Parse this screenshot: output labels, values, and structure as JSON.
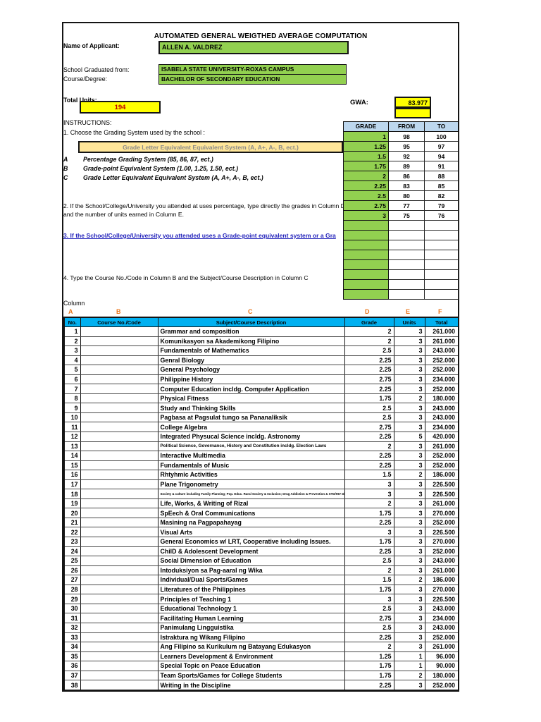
{
  "title": "AUTOMATED GENERAL WEIGTHED AVERAGE COMPUTATION",
  "applicant": {
    "name_label": "Name of Applicant:",
    "name": "ALLEN A. VALDREZ",
    "school_label": "School Graduated from:",
    "school": "ISABELA STATE UNIVERSITY-ROXAS CAMPUS",
    "course_label": "Course/Degree:",
    "course": "BACHELOR OF SECONDARY EDUCATION",
    "total_units_label": "Total Units:",
    "total_units": "194",
    "gwa_label": "GWA:",
    "gwa": "83.977"
  },
  "grade_scale": {
    "headers": [
      "GRADE",
      "FROM",
      "TO"
    ],
    "rows": [
      {
        "grade": "1",
        "from": "98",
        "to": "100"
      },
      {
        "grade": "1.25",
        "from": "95",
        "to": "97"
      },
      {
        "grade": "1.5",
        "from": "92",
        "to": "94"
      },
      {
        "grade": "1.75",
        "from": "89",
        "to": "91"
      },
      {
        "grade": "2",
        "from": "86",
        "to": "88"
      },
      {
        "grade": "2.25",
        "from": "83",
        "to": "85"
      },
      {
        "grade": "2.5",
        "from": "80",
        "to": "82"
      },
      {
        "grade": "2.75",
        "from": "77",
        "to": "79"
      },
      {
        "grade": "3",
        "from": "75",
        "to": "76"
      }
    ],
    "empty_row_count": 8
  },
  "instructions": {
    "heading": "INSTRUCTIONS:",
    "step1": "1. Choose the Grading System used by the school :",
    "dropdown_value": "Grade Letter Equivalent Equivalent System (A, A+, A-, B, ect.)",
    "options": [
      {
        "letter": "A",
        "text": "Percentage Grading System (85, 86, 87, ect.)"
      },
      {
        "letter": "B",
        "text": "Grade-point Equivalent System (1.00, 1.25, 1.50, ect.)"
      },
      {
        "letter": "C",
        "text": "Grade Letter Equivalent Equivalent System (A, A+, A-, B, ect.)"
      }
    ],
    "step2": "2. If the School/College/University you attended at uses percentage, type directly the grades in Column D and the number of units earned in Column E.",
    "step3": "3. If the School/College/University you attended uses a Grade-point equivalent system or a Gra",
    "step4": "4. Type the Course No./Code in Column B and the Subject/Course Description in Column C",
    "column_label": "Column"
  },
  "column_letters": [
    "A",
    "B",
    "C",
    "D",
    "E",
    "F"
  ],
  "main_table": {
    "headers": [
      "No.",
      "Course No./Code",
      "Subject/Course Description",
      "Grade",
      "Units",
      "Total"
    ],
    "rows": [
      {
        "no": "1",
        "code": "",
        "desc": "Grammar and composition",
        "grade": "2",
        "units": "3",
        "total": "261.000",
        "size": ""
      },
      {
        "no": "2",
        "code": "",
        "desc": "Komunikasyon sa Akademikong Filipino",
        "grade": "2",
        "units": "3",
        "total": "261.000",
        "size": ""
      },
      {
        "no": "3",
        "code": "",
        "desc": "Fundamentals of Mathematics",
        "grade": "2.5",
        "units": "3",
        "total": "243.000",
        "size": ""
      },
      {
        "no": "4",
        "code": "",
        "desc": "Genral Biology",
        "grade": "2.25",
        "units": "3",
        "total": "252.000",
        "size": ""
      },
      {
        "no": "5",
        "code": "",
        "desc": "General Psychology",
        "grade": "2.25",
        "units": "3",
        "total": "252.000",
        "size": ""
      },
      {
        "no": "6",
        "code": "",
        "desc": "Philippine History",
        "grade": "2.75",
        "units": "3",
        "total": "234.000",
        "size": ""
      },
      {
        "no": "7",
        "code": "",
        "desc": "Computer Education incldg. Computer Application",
        "grade": "2.25",
        "units": "3",
        "total": "252.000",
        "size": ""
      },
      {
        "no": "8",
        "code": "",
        "desc": "Physical Fitness",
        "grade": "1.75",
        "units": "2",
        "total": "180.000",
        "size": ""
      },
      {
        "no": "9",
        "code": "",
        "desc": "Study and Thinking Skills",
        "grade": "2.5",
        "units": "3",
        "total": "243.000",
        "size": ""
      },
      {
        "no": "10",
        "code": "",
        "desc": "Pagbasa at Pagsulat tungo sa Pananaliksik",
        "grade": "2.5",
        "units": "3",
        "total": "243.000",
        "size": ""
      },
      {
        "no": "11",
        "code": "",
        "desc": "College Algebra",
        "grade": "2.75",
        "units": "3",
        "total": "234.000",
        "size": ""
      },
      {
        "no": "12",
        "code": "",
        "desc": "Integrated Physucal Science incldg. Astronomy",
        "grade": "2.25",
        "units": "5",
        "total": "420.000",
        "size": ""
      },
      {
        "no": "13",
        "code": "",
        "desc": "Political Science, Governance, History and Constitution incldg. Election Laws",
        "grade": "2",
        "units": "3",
        "total": "261.000",
        "size": "small"
      },
      {
        "no": "14",
        "code": "",
        "desc": "Interactive Multimedia",
        "grade": "2.25",
        "units": "3",
        "total": "252.000",
        "size": ""
      },
      {
        "no": "15",
        "code": "",
        "desc": "Fundamentals of Music",
        "grade": "2.25",
        "units": "3",
        "total": "252.000",
        "size": ""
      },
      {
        "no": "16",
        "code": "",
        "desc": "Rhtyhmic  Activities",
        "grade": "1.5",
        "units": "2",
        "total": "186.000",
        "size": ""
      },
      {
        "no": "17",
        "code": "",
        "desc": "Plane Trigonometry",
        "grade": "3",
        "units": "3",
        "total": "226.500",
        "size": ""
      },
      {
        "no": "18",
        "code": "",
        "desc": "Society & culture including Family Planning; Pop. Educ. Rural Society & Inclusion; Drug Addiction & Prevention & STD/HIV Diseases",
        "grade": "3",
        "units": "3",
        "total": "226.500",
        "size": "tiny"
      },
      {
        "no": "19",
        "code": "",
        "desc": "Life, Works, & Writing of Rizal",
        "grade": "2",
        "units": "3",
        "total": "261.000",
        "size": ""
      },
      {
        "no": "20",
        "code": "",
        "desc": "SpEech & Oral Communications",
        "grade": "1.75",
        "units": "3",
        "total": "270.000",
        "size": ""
      },
      {
        "no": "21",
        "code": "",
        "desc": "Masining na Pagpapahayag",
        "grade": "2.25",
        "units": "3",
        "total": "252.000",
        "size": ""
      },
      {
        "no": "22",
        "code": "",
        "desc": "Visual Arts",
        "grade": "3",
        "units": "3",
        "total": "226.500",
        "size": ""
      },
      {
        "no": "23",
        "code": "",
        "desc": "General Economics w/ LRT, Cooperative including Issues.",
        "grade": "1.75",
        "units": "3",
        "total": "270.000",
        "size": ""
      },
      {
        "no": "24",
        "code": "",
        "desc": "ChilD & Adolescent Development",
        "grade": "2.25",
        "units": "3",
        "total": "252.000",
        "size": ""
      },
      {
        "no": "25",
        "code": "",
        "desc": "Social Dimension of Education",
        "grade": "2.5",
        "units": "3",
        "total": "243.000",
        "size": ""
      },
      {
        "no": "26",
        "code": "",
        "desc": "Intoduksiyon sa Pag-aaral ng Wika",
        "grade": "2",
        "units": "3",
        "total": "261.000",
        "size": ""
      },
      {
        "no": "27",
        "code": "",
        "desc": "Individual/Dual Sports/Games",
        "grade": "1.5",
        "units": "2",
        "total": "186.000",
        "size": ""
      },
      {
        "no": "28",
        "code": "",
        "desc": "Literatures of the Philippines",
        "grade": "1.75",
        "units": "3",
        "total": "270.000",
        "size": ""
      },
      {
        "no": "29",
        "code": "",
        "desc": "Principles of Teaching 1",
        "grade": "3",
        "units": "3",
        "total": "226.500",
        "size": ""
      },
      {
        "no": "30",
        "code": "",
        "desc": "Educational Technology 1",
        "grade": "2.5",
        "units": "3",
        "total": "243.000",
        "size": ""
      },
      {
        "no": "31",
        "code": "",
        "desc": "Facilitating Human Learning",
        "grade": "2.75",
        "units": "3",
        "total": "234.000",
        "size": ""
      },
      {
        "no": "32",
        "code": "",
        "desc": "Panimulang Lingguistika",
        "grade": "2.5",
        "units": "3",
        "total": "243.000",
        "size": ""
      },
      {
        "no": "33",
        "code": "",
        "desc": "Istraktura ng Wikang Filipino",
        "grade": "2.25",
        "units": "3",
        "total": "252.000",
        "size": ""
      },
      {
        "no": "34",
        "code": "",
        "desc": "Ang Filipino sa Kurikulum ng Batayang Edukasyon",
        "grade": "2",
        "units": "3",
        "total": "261.000",
        "size": ""
      },
      {
        "no": "35",
        "code": "",
        "desc": "Learners Development & Environment",
        "grade": "1.25",
        "units": "1",
        "total": "96.000",
        "size": ""
      },
      {
        "no": "36",
        "code": "",
        "desc": "Special Topic on Peace Education",
        "grade": "1.75",
        "units": "1",
        "total": "90.000",
        "size": ""
      },
      {
        "no": "37",
        "code": "",
        "desc": "Team Sports/Games for College Students",
        "grade": "1.75",
        "units": "2",
        "total": "180.000",
        "size": ""
      },
      {
        "no": "38",
        "code": "",
        "desc": "Writing in the Discipline",
        "grade": "2.25",
        "units": "3",
        "total": "252.000",
        "size": ""
      }
    ]
  },
  "colors": {
    "input_green": "#92D050",
    "highlight_yellow": "#FFFF00",
    "table_header_cyan": "#00B0F0",
    "scale_header_blue": "#BDD7EE",
    "dropdown_tan": "#FFE699",
    "column_letter_orange": "#E8751A",
    "step3_blue": "#2323BB",
    "total_units_red": "#C00000"
  }
}
